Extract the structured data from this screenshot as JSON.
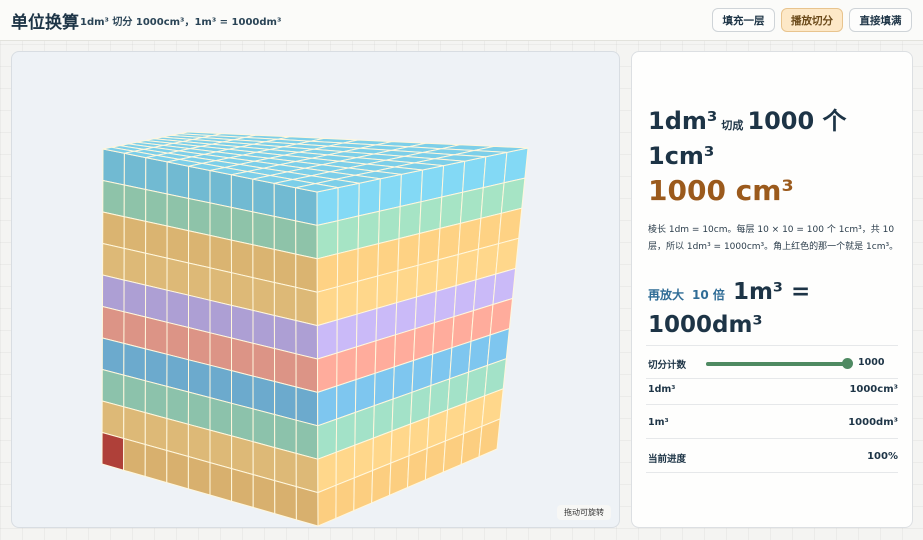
{
  "header": {
    "title": "单位换算",
    "subtitle": "1dm³ 切分 1000cm³，1m³ = 1000dm³",
    "buttons": [
      {
        "label": "填充一层",
        "active": false
      },
      {
        "label": "播放切分",
        "active": true
      },
      {
        "label": "直接填满",
        "active": false
      }
    ]
  },
  "viewer": {
    "hint": "拖动可旋转",
    "grid_n": 10,
    "top_color": "#7dcfe9",
    "highlight_color": "#c2473f",
    "layer_colors": [
      "#f0c47a",
      "#f5cd84",
      "#9bd7be",
      "#78bde4",
      "#f4a495",
      "#c0b1ec",
      "#f5cd84",
      "#f2c87e",
      "#9ed9bc",
      "#7dcfe9"
    ]
  },
  "panel": {
    "headline_a": "1dm³",
    "headline_small": "切成",
    "headline_b": "1000 个 1cm³",
    "big_value": "1000 cm³",
    "description": "棱长 1dm = 10cm。每层 10 × 10 = 100 个 1cm³，共 10 层，所以 1dm³ = 1000cm³。角上红色的那一个就是 1cm³。",
    "scale_prefix": "再放大",
    "scale_factor": "10 倍",
    "scale_result": "1m³ = 1000dm³",
    "slider": {
      "label": "切分计数",
      "value": 1000,
      "max": 1000,
      "display": "1000"
    },
    "rows": [
      {
        "label": "1dm³",
        "value": "1000cm³"
      },
      {
        "label": "1m³",
        "value": "1000dm³"
      },
      {
        "label": "当前进度",
        "value": "100%"
      }
    ]
  }
}
